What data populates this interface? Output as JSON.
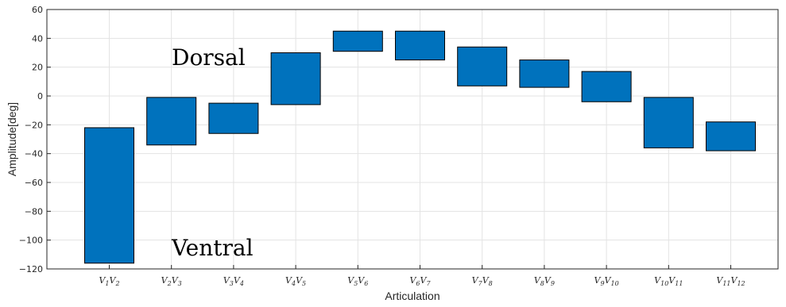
{
  "chart_data": {
    "type": "bar",
    "subtype": "floating-range",
    "categories": [
      [
        "V",
        "1",
        "V",
        "2"
      ],
      [
        "V",
        "2",
        "V",
        "3"
      ],
      [
        "V",
        "3",
        "V",
        "4"
      ],
      [
        "V",
        "4",
        "V",
        "5"
      ],
      [
        "V",
        "5",
        "V",
        "6"
      ],
      [
        "V",
        "6",
        "V",
        "7"
      ],
      [
        "V",
        "7",
        "V",
        "8"
      ],
      [
        "V",
        "8",
        "V",
        "9"
      ],
      [
        "V",
        "9",
        "V",
        "10"
      ],
      [
        "V",
        "10",
        "V",
        "11"
      ],
      [
        "V",
        "11",
        "V",
        "12"
      ]
    ],
    "ranges": [
      [
        -116,
        -22
      ],
      [
        -34,
        -1
      ],
      [
        -26,
        -5
      ],
      [
        -6,
        30
      ],
      [
        31,
        45
      ],
      [
        25,
        45
      ],
      [
        7,
        34
      ],
      [
        6,
        25
      ],
      [
        -4,
        17
      ],
      [
        -36,
        -1
      ],
      [
        -38,
        -18
      ]
    ],
    "xlabel": "Articulation",
    "ylabel": "Amplitude[deg]",
    "ylim": [
      -120,
      60
    ],
    "yticks": [
      -120,
      -100,
      -80,
      -60,
      -40,
      -20,
      0,
      20,
      40,
      60
    ],
    "grid": true,
    "bar_color": "#0072BD",
    "annotations": [
      {
        "text": "Dorsal",
        "x": 0.0,
        "y": 27
      },
      {
        "text": "Ventral",
        "x": 0.0,
        "y": -105
      }
    ]
  }
}
